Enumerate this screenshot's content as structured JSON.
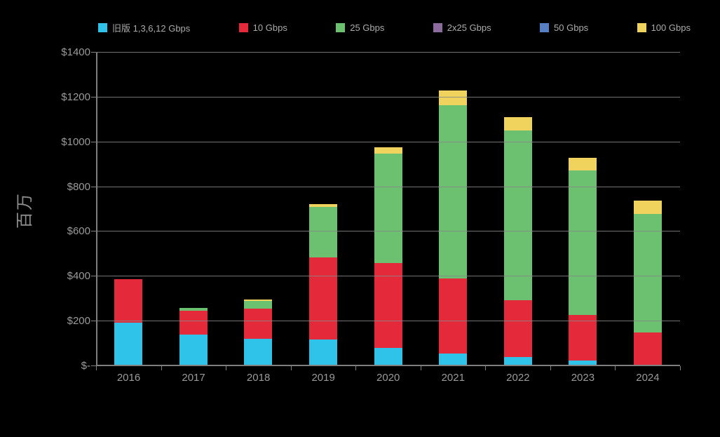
{
  "page": {
    "background": "#000000"
  },
  "chart_data": {
    "type": "bar",
    "stacked": true,
    "title": "",
    "categories": [
      "2016",
      "2017",
      "2018",
      "2019",
      "2020",
      "2021",
      "2022",
      "2023",
      "2024"
    ],
    "series": [
      {
        "name": "旧版 1,3,6,12 Gbps",
        "color": "#30C3E9",
        "values": [
          195,
          140,
          122,
          119,
          81,
          57,
          40,
          25,
          0
        ]
      },
      {
        "name": "10 Gbps",
        "color": "#E4293B",
        "values": [
          193,
          107,
          134,
          365,
          378,
          334,
          253,
          203,
          150
        ]
      },
      {
        "name": "25 Gbps",
        "color": "#6CC171",
        "values": [
          0,
          12,
          34,
          228,
          490,
          775,
          760,
          647,
          531
        ]
      },
      {
        "name": "2x25 Gbps",
        "color": "#8C6B9E",
        "values": [
          0,
          0,
          0,
          0,
          0,
          0,
          0,
          0,
          0
        ]
      },
      {
        "name": "50 Gbps",
        "color": "#5680C3",
        "values": [
          0,
          0,
          0,
          0,
          0,
          0,
          0,
          0,
          0
        ]
      },
      {
        "name": "100 Gbps",
        "color": "#EFD35D",
        "values": [
          0,
          0,
          9,
          13,
          28,
          66,
          58,
          56,
          59
        ]
      }
    ],
    "xlabel": "",
    "ylabel": "百万",
    "ylim": [
      0,
      1400
    ],
    "ytick_step": 200,
    "ytick_labels": [
      "$-",
      "$200",
      "$400",
      "$600",
      "$800",
      "$1000",
      "$1200",
      "$1400"
    ],
    "grid": true,
    "gridlines_over_bars": true,
    "legend_position": "top",
    "background_color": "#000000",
    "axis_color": "#7F7F7F",
    "label_color": "#9A9A9A"
  }
}
